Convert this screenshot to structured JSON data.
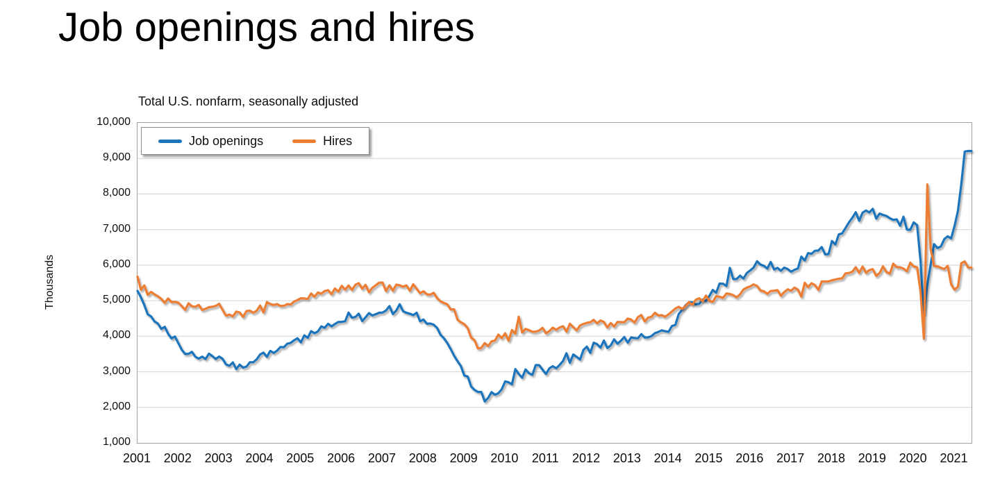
{
  "page_title": "Job openings and hires",
  "chart_data": {
    "type": "line",
    "title": "Job openings and hires",
    "subtitle": "Total U.S. nonfarm, seasonally adjusted",
    "xlabel": "",
    "ylabel": "Thousands",
    "ylim": [
      1000,
      10000
    ],
    "y_tick_step": 1000,
    "y_tick_labels": [
      "10,000",
      "9,000",
      "8,000",
      "7,000",
      "6,000",
      "5,000",
      "4,000",
      "3,000",
      "2,000",
      "1,000"
    ],
    "x_tick_labels": [
      "2001",
      "2002",
      "2003",
      "2004",
      "2005",
      "2006",
      "2007",
      "2008",
      "2009",
      "2010",
      "2011",
      "2012",
      "2013",
      "2014",
      "2015",
      "2016",
      "2017",
      "2018",
      "2019",
      "2020",
      "2021"
    ],
    "x_frequency": "monthly",
    "x_range": "Jan 2001 - Jun 2021",
    "grid": true,
    "legend_position": "top-left",
    "series": [
      {
        "name": "Job openings",
        "color": "#1B75BC",
        "values": [
          5275,
          5094,
          4878,
          4617,
          4557,
          4417,
          4355,
          4207,
          4267,
          4069,
          3939,
          3993,
          3805,
          3621,
          3500,
          3506,
          3561,
          3423,
          3370,
          3426,
          3359,
          3511,
          3442,
          3358,
          3429,
          3363,
          3206,
          3169,
          3264,
          3075,
          3202,
          3118,
          3145,
          3268,
          3268,
          3349,
          3485,
          3539,
          3420,
          3589,
          3530,
          3594,
          3698,
          3693,
          3790,
          3813,
          3887,
          3944,
          3826,
          4024,
          3956,
          4143,
          4087,
          4135,
          4278,
          4239,
          4350,
          4278,
          4345,
          4400,
          4405,
          4421,
          4665,
          4519,
          4542,
          4635,
          4426,
          4532,
          4650,
          4585,
          4620,
          4661,
          4666,
          4724,
          4848,
          4623,
          4722,
          4900,
          4704,
          4659,
          4633,
          4594,
          4661,
          4421,
          4470,
          4351,
          4357,
          4327,
          4232,
          4043,
          3944,
          3807,
          3639,
          3452,
          3297,
          3159,
          2891,
          2868,
          2585,
          2491,
          2435,
          2433,
          2166,
          2265,
          2430,
          2355,
          2396,
          2508,
          2730,
          2707,
          2648,
          3077,
          2936,
          2833,
          3067,
          2960,
          2914,
          3191,
          3186,
          3060,
          2937,
          3096,
          3157,
          3099,
          3194,
          3306,
          3523,
          3253,
          3487,
          3420,
          3344,
          3617,
          3707,
          3532,
          3820,
          3778,
          3681,
          3880,
          3668,
          3741,
          3912,
          3790,
          3872,
          3979,
          3818,
          3966,
          3950,
          3942,
          4060,
          3965,
          3967,
          4006,
          4086,
          4122,
          4165,
          4142,
          4124,
          4287,
          4318,
          4626,
          4740,
          4872,
          4956,
          4954,
          4893,
          4910,
          5030,
          4988,
          5133,
          5301,
          5224,
          5480,
          5476,
          5414,
          5923,
          5606,
          5612,
          5703,
          5623,
          5779,
          5852,
          5934,
          6110,
          6014,
          5982,
          5903,
          6089,
          5877,
          5924,
          5841,
          5932,
          5889,
          5816,
          5868,
          5908,
          6238,
          6131,
          6337,
          6318,
          6404,
          6410,
          6508,
          6303,
          6310,
          6680,
          6580,
          6862,
          6892,
          7046,
          7203,
          7334,
          7487,
          7247,
          7474,
          7536,
          7481,
          7584,
          7308,
          7450,
          7412,
          7384,
          7320,
          7272,
          7288,
          7109,
          7361,
          6999,
          6995,
          7202,
          7125,
          6131,
          4632,
          5436,
          6023,
          6589,
          6481,
          6526,
          6731,
          6810,
          6752,
          7099,
          7526,
          8288,
          9193,
          9209,
          9209
        ]
      },
      {
        "name": "Hires",
        "color": "#ED7D31",
        "values": [
          5675,
          5304,
          5427,
          5165,
          5248,
          5175,
          5126,
          5049,
          4939,
          5063,
          4960,
          4968,
          4944,
          4848,
          4743,
          4927,
          4843,
          4828,
          4881,
          4738,
          4771,
          4817,
          4830,
          4852,
          4912,
          4737,
          4577,
          4609,
          4559,
          4692,
          4670,
          4544,
          4707,
          4720,
          4663,
          4718,
          4864,
          4671,
          4962,
          4906,
          4879,
          4904,
          4852,
          4856,
          4905,
          4890,
          4977,
          5018,
          5068,
          5062,
          5048,
          5204,
          5110,
          5232,
          5198,
          5271,
          5295,
          5183,
          5344,
          5255,
          5418,
          5311,
          5428,
          5303,
          5447,
          5492,
          5337,
          5445,
          5239,
          5361,
          5433,
          5505,
          5509,
          5271,
          5434,
          5279,
          5452,
          5432,
          5394,
          5430,
          5279,
          5462,
          5335,
          5211,
          5264,
          5177,
          5172,
          5221,
          5072,
          4983,
          4936,
          4899,
          4755,
          4756,
          4465,
          4391,
          4341,
          4228,
          3962,
          3890,
          3657,
          3671,
          3808,
          3726,
          3854,
          3879,
          4047,
          3948,
          4083,
          3874,
          4174,
          4075,
          4550,
          4103,
          4206,
          4172,
          4127,
          4128,
          4162,
          4234,
          4084,
          4145,
          4240,
          4181,
          4246,
          4281,
          4129,
          4352,
          4256,
          4166,
          4304,
          4346,
          4378,
          4394,
          4462,
          4362,
          4443,
          4401,
          4249,
          4371,
          4273,
          4402,
          4396,
          4395,
          4496,
          4469,
          4383,
          4538,
          4598,
          4415,
          4522,
          4547,
          4661,
          4585,
          4592,
          4549,
          4616,
          4695,
          4779,
          4828,
          4767,
          4851,
          4959,
          4884,
          5027,
          5069,
          4985,
          5142,
          4997,
          4968,
          5128,
          5109,
          5082,
          5204,
          5190,
          5153,
          5095,
          5177,
          5316,
          5368,
          5405,
          5457,
          5414,
          5285,
          5266,
          5192,
          5271,
          5282,
          5297,
          5136,
          5244,
          5318,
          5281,
          5368,
          5308,
          5114,
          5504,
          5381,
          5491,
          5439,
          5302,
          5541,
          5540,
          5542,
          5572,
          5595,
          5617,
          5628,
          5770,
          5777,
          5814,
          5942,
          5783,
          5961,
          5784,
          5862,
          5886,
          5700,
          5775,
          5965,
          5805,
          5761,
          6041,
          5945,
          5940,
          5902,
          5824,
          6070,
          5963,
          5939,
          5260,
          3930,
          8270,
          6448,
          5976,
          5962,
          5926,
          5891,
          5979,
          5460,
          5309,
          5393,
          6052,
          6104,
          5934,
          5932
        ]
      }
    ]
  }
}
